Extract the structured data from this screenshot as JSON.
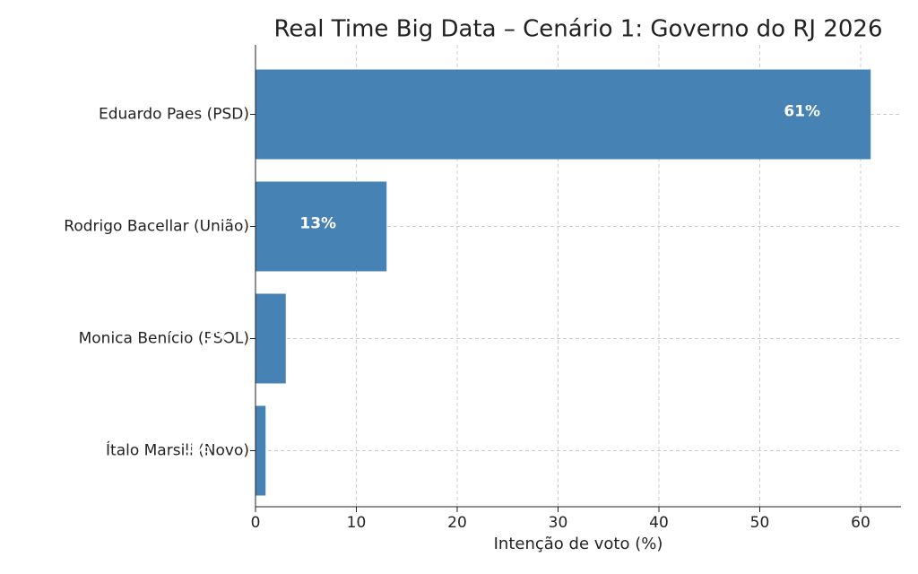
{
  "chart_data": {
    "type": "barh",
    "title": "Real Time Big Data – Cenário 1: Governo do RJ 2026",
    "x_label": "Intenção de voto (%)",
    "categories": [
      "Eduardo Paes (PSD)",
      "Rodrigo Bacellar (União)",
      "Monica Benício (PSOL)",
      "Ítalo Marsili (Novo)"
    ],
    "values": [
      61,
      13,
      3,
      1
    ],
    "value_labels": [
      "61%",
      "13%",
      "3%",
      "1%"
    ],
    "color": "#4682b4",
    "xlim": [
      0,
      64
    ],
    "xticks": [
      0,
      10,
      20,
      30,
      40,
      50,
      60
    ],
    "grid": true
  }
}
